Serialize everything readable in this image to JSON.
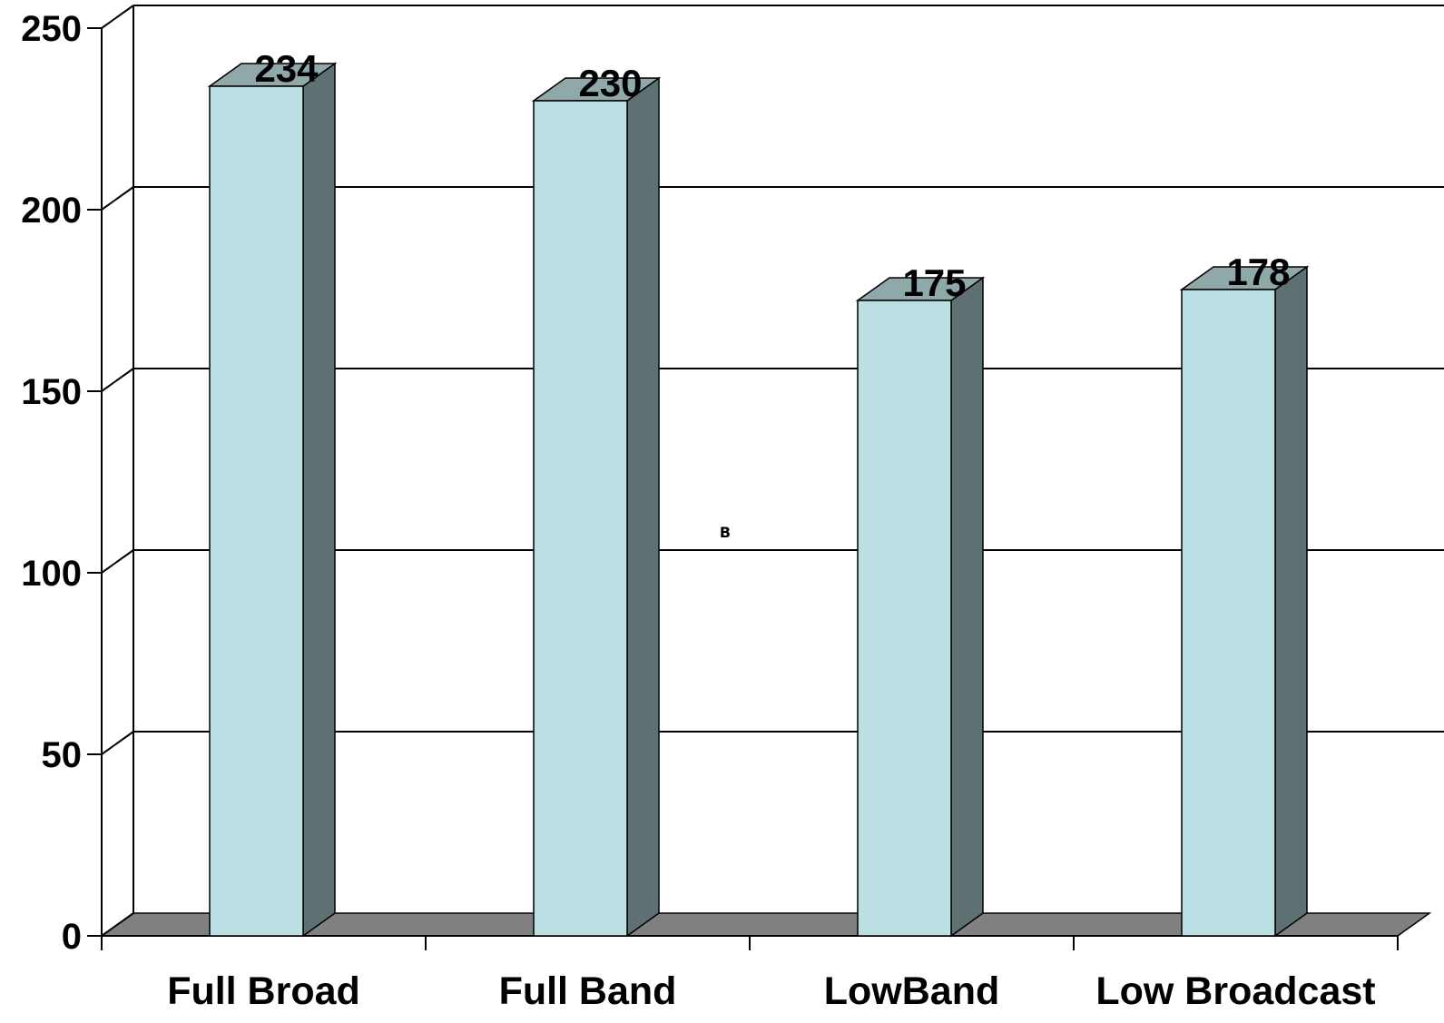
{
  "chart_data": {
    "type": "bar",
    "style": "3d-column",
    "categories": [
      "Full Broad",
      "Full Band",
      "LowBand",
      "Low Broadcast"
    ],
    "values": [
      234,
      230,
      175,
      178
    ],
    "data_labels": [
      "234",
      "230",
      "175",
      "178"
    ],
    "title": "",
    "xlabel": "",
    "ylabel": "",
    "ylim": [
      0,
      250
    ],
    "yticks": [
      0,
      50,
      100,
      150,
      200,
      250
    ],
    "ytick_labels": [
      "0",
      "50",
      "100",
      "150",
      "200",
      "250"
    ],
    "grid": true,
    "legend": "none",
    "annotation": "B",
    "colors": {
      "bar_front": "#bbe0e3",
      "bar_side": "#5f7072",
      "bar_top": "#8fa8aa",
      "floor": "#808080",
      "gridline": "#000000"
    }
  }
}
